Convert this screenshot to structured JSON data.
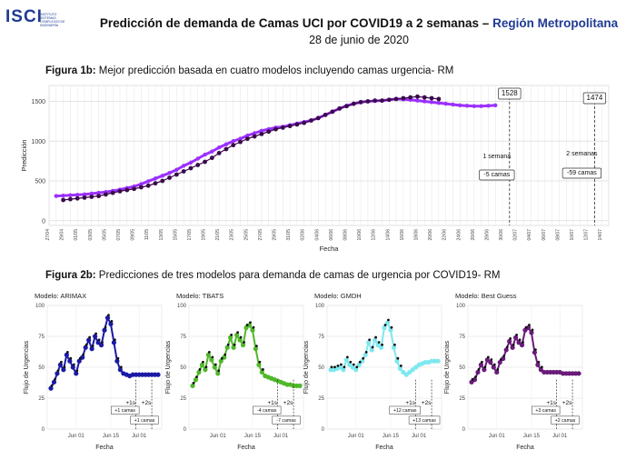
{
  "logo": {
    "text": "ISCI",
    "subtitle": "INSTITUTO SISTEMAS COMPLEJOS DE INGENIERÍA"
  },
  "header": {
    "title_main": "Predicción de demanda de Camas UCI por COVID19 a 2 semanas – ",
    "title_region": "Región Metropolitana",
    "date": "28 de junio de 2020"
  },
  "figure1": {
    "caption_bold": "Figura 1b:",
    "caption_text": " Mejor predicción basada en cuatro modelos incluyendo camas urgencia- RM"
  },
  "figure2": {
    "caption_bold": "Figura 2b:",
    "caption_text": " Predicciones de tres modelos para demanda de camas de urgencia por COVID19- RM"
  },
  "chart_data": [
    {
      "type": "line",
      "ylabel": "Predicción",
      "xlabel": "Fecha",
      "ylim": [
        -60,
        1700
      ],
      "yticks": [
        0,
        500,
        1000,
        1500
      ],
      "grid": true,
      "x_tick_labels": [
        "27/04",
        "29/04",
        "01/05",
        "03/05",
        "05/05",
        "07/05",
        "09/05",
        "11/05",
        "13/05",
        "15/05",
        "17/05",
        "19/05",
        "21/05",
        "23/05",
        "25/05",
        "27/05",
        "29/05",
        "31/05",
        "02/06",
        "04/06",
        "06/06",
        "08/06",
        "10/06",
        "12/06",
        "14/06",
        "16/06",
        "18/06",
        "20/06",
        "22/06",
        "24/06",
        "26/06",
        "28/06",
        "30/06",
        "02/07",
        "04/07",
        "06/07",
        "08/07",
        "10/07",
        "12/07",
        "14/07"
      ],
      "series": [
        {
          "color": "#9b30ff",
          "x_start_index": 1,
          "values": [
            310,
            315,
            320,
            325,
            330,
            340,
            350,
            360,
            375,
            390,
            410,
            430,
            460,
            495,
            530,
            565,
            600,
            640,
            690,
            730,
            780,
            830,
            870,
            920,
            960,
            1000,
            1030,
            1070,
            1100,
            1130,
            1150,
            1170,
            1180,
            1200,
            1220,
            1240,
            1260,
            1290,
            1330,
            1370,
            1410,
            1445,
            1470,
            1490,
            1500,
            1505,
            1510,
            1520,
            1530,
            1525,
            1520,
            1510,
            1500,
            1490,
            1480,
            1470,
            1460,
            1450,
            1445,
            1440,
            1440,
            1445,
            1450
          ]
        },
        {
          "color": "#3a0a4a",
          "x_start_index": 2,
          "values": [
            260,
            270,
            280,
            290,
            300,
            310,
            330,
            350,
            370,
            385,
            400,
            420,
            440,
            470,
            500,
            540,
            580,
            620,
            660,
            700,
            740,
            790,
            850,
            900,
            950,
            990,
            1030,
            1060,
            1090,
            1120,
            1150,
            1170,
            1190,
            1210,
            1230,
            1260,
            1290,
            1330,
            1370,
            1410,
            1440,
            1470,
            1490,
            1500,
            1510,
            1510,
            1520,
            1530,
            1540,
            1550,
            1560,
            1550,
            1540,
            1530
          ]
        }
      ],
      "annotations": [
        {
          "text": "1528",
          "x_index": 65
        },
        {
          "text": "1474",
          "x_index": 77
        },
        {
          "text": "1 semana",
          "x_index": 65
        },
        {
          "text": "2 semanas",
          "x_index": 77
        },
        {
          "text": "-5 camas",
          "x_index": 65
        },
        {
          "text": "-59 camas",
          "x_index": 77
        }
      ]
    },
    {
      "type": "line",
      "title": "Modelo: ARIMAX",
      "xlabel": "Fecha",
      "ylabel": "Flujo de Urgencias",
      "ylim": [
        0,
        100
      ],
      "yticks": [
        0,
        25,
        50,
        75,
        100
      ],
      "x_tick_labels": [
        "Jun 01",
        "Jun 15",
        "Jul 01"
      ],
      "series": [
        {
          "color": "#1a1aa6",
          "values": [
            33,
            38,
            45,
            52,
            48,
            60,
            55,
            50,
            45,
            55,
            58,
            66,
            72,
            65,
            75,
            70,
            68,
            80,
            90,
            85,
            70,
            55,
            48,
            45,
            44,
            43,
            44,
            44,
            44,
            44,
            44,
            44,
            44,
            44,
            44
          ]
        }
      ],
      "annotations": [
        {
          "text": "+1s"
        },
        {
          "text": "+2s"
        },
        {
          "text": "+1 camas"
        },
        {
          "text": "+1 camas"
        }
      ]
    },
    {
      "type": "line",
      "title": "Modelo: TBATS",
      "xlabel": "Fecha",
      "ylabel": "Flujo de Urgencias",
      "ylim": [
        0,
        100
      ],
      "yticks": [
        0,
        25,
        50,
        75,
        100
      ],
      "x_tick_labels": [
        "Jun 01",
        "Jun 15",
        "Jul 01"
      ],
      "series": [
        {
          "color": "#4fb82a",
          "values": [
            35,
            40,
            46,
            52,
            48,
            60,
            56,
            50,
            45,
            55,
            58,
            66,
            74,
            66,
            76,
            72,
            68,
            82,
            84,
            80,
            65,
            52,
            46,
            43,
            42,
            41,
            40,
            39,
            38,
            37,
            36,
            36,
            35,
            35,
            35
          ]
        }
      ],
      "annotations": [
        {
          "text": "+1s"
        },
        {
          "text": "+2s"
        },
        {
          "text": "-4 camas"
        },
        {
          "text": "-7 camas"
        }
      ]
    },
    {
      "type": "line",
      "title": "Modelo: GMDH",
      "xlabel": "Fecha",
      "ylabel": "Flujo de Urgencias",
      "ylim": [
        0,
        100
      ],
      "yticks": [
        0,
        25,
        50,
        75,
        100
      ],
      "x_tick_labels": [
        "Jun 01",
        "Jun 15",
        "Jul 01"
      ],
      "series": [
        {
          "color": "#7de8f0",
          "values": [
            48,
            48,
            49,
            50,
            48,
            56,
            52,
            50,
            48,
            52,
            55,
            60,
            70,
            64,
            72,
            68,
            66,
            82,
            86,
            80,
            66,
            55,
            49,
            46,
            44,
            46,
            48,
            50,
            52,
            53,
            54,
            54,
            55,
            55,
            55
          ]
        }
      ],
      "annotations": [
        {
          "text": "+1s"
        },
        {
          "text": "+2s"
        },
        {
          "text": "+12 camas"
        },
        {
          "text": "+13 camas"
        }
      ]
    },
    {
      "type": "line",
      "title": "Modelo: Best Guess",
      "xlabel": "Fecha",
      "ylabel": "Flujo de Urgencias",
      "ylim": [
        0,
        100
      ],
      "yticks": [
        0,
        25,
        50,
        75,
        100
      ],
      "x_tick_labels": [
        "Jun 01",
        "Jun 15",
        "Jul 01"
      ],
      "series": [
        {
          "color": "#6a1b7a",
          "values": [
            38,
            40,
            46,
            52,
            48,
            56,
            54,
            50,
            46,
            54,
            57,
            64,
            71,
            66,
            74,
            70,
            68,
            80,
            82,
            78,
            62,
            52,
            48,
            46,
            46,
            46,
            46,
            46,
            46,
            45,
            45,
            45,
            45,
            45,
            45
          ]
        }
      ],
      "annotations": [
        {
          "text": "+1s"
        },
        {
          "text": "+2s"
        },
        {
          "text": "+3 camas"
        },
        {
          "text": "+2 camas"
        }
      ]
    }
  ]
}
